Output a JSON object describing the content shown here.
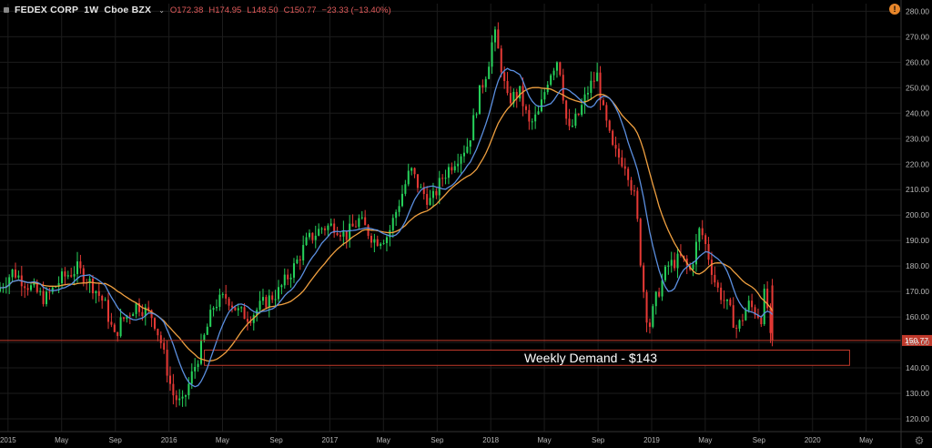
{
  "header": {
    "symbol": "FEDEX CORP",
    "interval": "1W",
    "exchange": "Cboe BZX",
    "open": "O172.38",
    "high": "H174.95",
    "low": "L148.50",
    "close": "C150.77",
    "change": "−23.33 (−13.40%)"
  },
  "colors": {
    "up": "#26d05a",
    "down": "#e53935",
    "ma_fast": "#5b8fe0",
    "ma_slow": "#f0a040",
    "zone": "#c0392b",
    "price_badge": "#c0392b"
  },
  "chart_data": {
    "type": "candlestick",
    "title": "FEDEX CORP",
    "y_axis": {
      "ylim": [
        115,
        283
      ],
      "ticks": [
        120,
        130,
        140,
        150,
        160,
        170,
        180,
        190,
        200,
        210,
        220,
        230,
        240,
        250,
        260,
        270,
        280
      ]
    },
    "x_axis": {
      "tick_labels": [
        "2015",
        "May",
        "Sep",
        "2016",
        "May",
        "Sep",
        "2017",
        "May",
        "Sep",
        "2018",
        "May",
        "Sep",
        "2019",
        "May",
        "Sep",
        "2020",
        "May"
      ],
      "tick_times": [
        2015.0,
        2015.333,
        2015.667,
        2016.0,
        2016.333,
        2016.667,
        2017.0,
        2017.333,
        2017.667,
        2018.0,
        2018.333,
        2018.667,
        2019.0,
        2019.333,
        2019.667,
        2020.0,
        2020.333
      ],
      "range": [
        2014.95,
        2020.55
      ]
    },
    "last_price": 150.77,
    "last_price_label": "150.77",
    "grid": true,
    "annotations": [
      {
        "type": "horizontal_line",
        "y": 150.77
      },
      {
        "type": "zone",
        "y_top": 147,
        "y_bottom": 141,
        "x_start": 2016.22,
        "x_end": 2020.23,
        "text": "Weekly Demand - $143"
      }
    ],
    "price_path": [
      [
        2014.95,
        170
      ],
      [
        2015.05,
        178
      ],
      [
        2015.15,
        172
      ],
      [
        2015.25,
        167
      ],
      [
        2015.35,
        175
      ],
      [
        2015.45,
        179
      ],
      [
        2015.55,
        172
      ],
      [
        2015.62,
        165
      ],
      [
        2015.68,
        152
      ],
      [
        2015.72,
        158
      ],
      [
        2015.82,
        165
      ],
      [
        2015.92,
        160
      ],
      [
        2015.97,
        150
      ],
      [
        2016.04,
        130
      ],
      [
        2016.1,
        125
      ],
      [
        2016.15,
        135
      ],
      [
        2016.22,
        148
      ],
      [
        2016.3,
        165
      ],
      [
        2016.38,
        168
      ],
      [
        2016.45,
        162
      ],
      [
        2016.52,
        160
      ],
      [
        2016.6,
        165
      ],
      [
        2016.7,
        170
      ],
      [
        2016.8,
        180
      ],
      [
        2016.88,
        190
      ],
      [
        2016.97,
        195
      ],
      [
        2017.05,
        196
      ],
      [
        2017.12,
        192
      ],
      [
        2017.2,
        198
      ],
      [
        2017.3,
        190
      ],
      [
        2017.38,
        192
      ],
      [
        2017.45,
        205
      ],
      [
        2017.52,
        218
      ],
      [
        2017.58,
        210
      ],
      [
        2017.65,
        205
      ],
      [
        2017.72,
        215
      ],
      [
        2017.8,
        222
      ],
      [
        2017.88,
        228
      ],
      [
        2017.95,
        248
      ],
      [
        2018.0,
        258
      ],
      [
        2018.04,
        272
      ],
      [
        2018.08,
        260
      ],
      [
        2018.12,
        245
      ],
      [
        2018.2,
        248
      ],
      [
        2018.26,
        235
      ],
      [
        2018.32,
        240
      ],
      [
        2018.38,
        255
      ],
      [
        2018.44,
        262
      ],
      [
        2018.5,
        232
      ],
      [
        2018.57,
        240
      ],
      [
        2018.63,
        250
      ],
      [
        2018.68,
        255
      ],
      [
        2018.72,
        240
      ],
      [
        2018.78,
        225
      ],
      [
        2018.86,
        220
      ],
      [
        2018.92,
        205
      ],
      [
        2018.96,
        175
      ],
      [
        2019.0,
        155
      ],
      [
        2019.05,
        168
      ],
      [
        2019.12,
        180
      ],
      [
        2019.2,
        183
      ],
      [
        2019.26,
        178
      ],
      [
        2019.32,
        195
      ],
      [
        2019.36,
        187
      ],
      [
        2019.42,
        172
      ],
      [
        2019.5,
        163
      ],
      [
        2019.55,
        155
      ],
      [
        2019.62,
        165
      ],
      [
        2019.7,
        160
      ],
      [
        2019.73,
        173
      ],
      [
        2019.75,
        150.77
      ]
    ]
  },
  "zone_label": "Weekly Demand - $143"
}
